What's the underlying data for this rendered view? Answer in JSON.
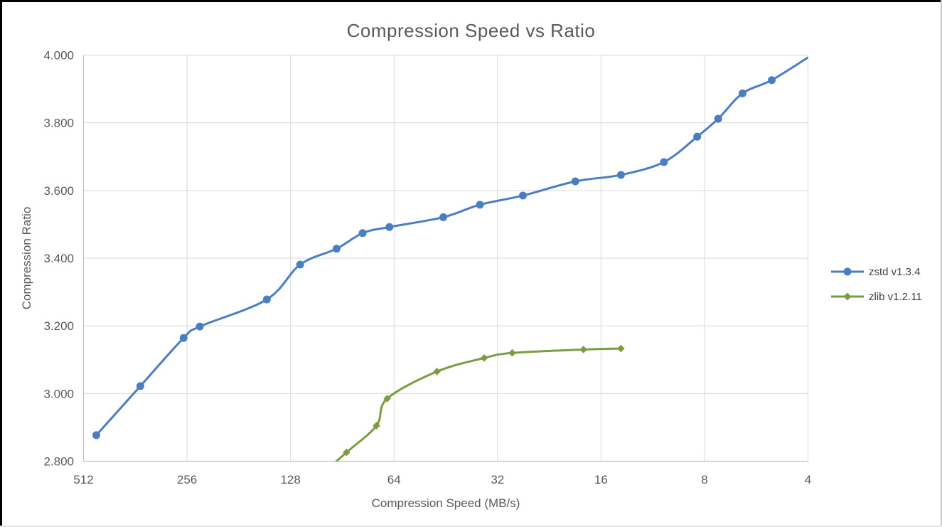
{
  "colors": {
    "background": "#ffffff",
    "frame_top_left": "#000000",
    "frame_right_bottom": "#c9c9c9",
    "gridline": "#d9d9d9",
    "axis_line": "#bfbfbf",
    "title_text": "#595959",
    "tick_text": "#595959",
    "axis_title_text": "#595959",
    "legend_text": "#404040"
  },
  "chart_data": {
    "type": "line",
    "title": "Compression Speed vs Ratio",
    "xlabel": "Compression Speed (MB/s)",
    "ylabel": "Compression Ratio",
    "x_scale": "log2_reversed",
    "x_range": [
      512,
      4
    ],
    "y_range": [
      2.8,
      4.0
    ],
    "x_ticks": [
      512,
      256,
      128,
      64,
      32,
      16,
      8,
      4
    ],
    "x_tick_labels": [
      "512",
      "256",
      "128",
      "64",
      "32",
      "16",
      "8",
      "4"
    ],
    "y_ticks": [
      4.0,
      3.8,
      3.6,
      3.4,
      3.2,
      3.0,
      2.8
    ],
    "y_tick_labels": [
      "4.000",
      "3.800",
      "3.600",
      "3.400",
      "3.200",
      "3.000",
      "2.800"
    ],
    "grid": true,
    "line_smoothing": true,
    "legend_position": "right",
    "series": [
      {
        "name": "zstd v1.3.4",
        "color": "#4a7ec2",
        "marker": "circle",
        "points": [
          [
            470,
            2.877
          ],
          [
            350,
            3.022
          ],
          [
            262,
            3.164
          ],
          [
            235,
            3.198
          ],
          [
            150,
            3.278
          ],
          [
            120,
            3.381
          ],
          [
            94,
            3.428
          ],
          [
            79,
            3.474
          ],
          [
            66,
            3.492
          ],
          [
            46,
            3.521
          ],
          [
            36,
            3.558
          ],
          [
            27,
            3.585
          ],
          [
            19,
            3.627
          ],
          [
            14,
            3.646
          ],
          [
            10.5,
            3.684
          ],
          [
            8.4,
            3.759
          ],
          [
            7.3,
            3.812
          ],
          [
            6.2,
            3.887
          ],
          [
            5.1,
            3.926
          ],
          [
            4.0,
            3.993,
            0
          ]
        ]
      },
      {
        "name": "zlib v1.2.11",
        "color": "#7a9c42",
        "marker": "diamond",
        "points": [
          [
            110,
            2.74,
            0
          ],
          [
            88,
            2.826
          ],
          [
            72,
            2.905
          ],
          [
            67,
            2.985
          ],
          [
            48,
            3.065
          ],
          [
            35,
            3.105
          ],
          [
            29,
            3.12
          ],
          [
            18,
            3.13
          ],
          [
            14,
            3.133
          ]
        ]
      }
    ]
  }
}
